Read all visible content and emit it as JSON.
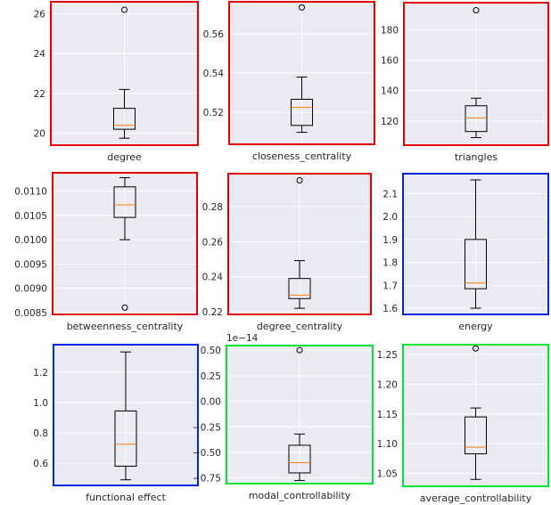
{
  "chart_data": [
    {
      "type": "box",
      "name": "degree",
      "xlabel": "degree",
      "border_color": "#e60000",
      "ylim": [
        19.4,
        26.6
      ],
      "yticks": [
        20,
        22,
        24,
        26
      ],
      "tick_labels": [
        "20",
        "22",
        "24",
        "26"
      ],
      "whisker_low": 19.75,
      "q1": 20.2,
      "median": 20.4,
      "q3": 21.25,
      "whisker_high": 22.2,
      "outliers": [
        26.2
      ]
    },
    {
      "type": "box",
      "name": "closeness_centrality",
      "xlabel": "closeness_centrality",
      "border_color": "#e60000",
      "ylim": [
        0.5037,
        0.5762
      ],
      "yticks": [
        0.52,
        0.54,
        0.56
      ],
      "tick_labels": [
        "0.52",
        "0.54",
        "0.56"
      ],
      "whisker_low": 0.5098,
      "q1": 0.5133,
      "median": 0.5225,
      "q3": 0.5266,
      "whisker_high": 0.5379,
      "outliers": [
        0.5733
      ]
    },
    {
      "type": "box",
      "name": "triangles",
      "xlabel": "triangles",
      "border_color": "#e60000",
      "ylim": [
        104,
        198
      ],
      "yticks": [
        120,
        140,
        160,
        180
      ],
      "tick_labels": [
        "120",
        "140",
        "160",
        "180"
      ],
      "whisker_low": 109,
      "q1": 113,
      "median": 122,
      "q3": 130,
      "whisker_high": 135,
      "outliers": [
        193
      ]
    },
    {
      "type": "box",
      "name": "betweenness_centrality",
      "xlabel": "betweenness_centrality",
      "border_color": "#e60000",
      "ylim": [
        0.00846,
        0.01138
      ],
      "yticks": [
        0.0085,
        0.009,
        0.0095,
        0.01,
        0.0105,
        0.011
      ],
      "tick_labels": [
        "0.0085",
        "0.0090",
        "0.0095",
        "0.0100",
        "0.0105",
        "0.0110"
      ],
      "whisker_low": 0.01,
      "q1": 0.01046,
      "median": 0.01072,
      "q3": 0.01109,
      "whisker_high": 0.01128,
      "outliers": [
        0.0086
      ]
    },
    {
      "type": "box",
      "name": "degree_centrality",
      "xlabel": "degree_centrality",
      "border_color": "#e60000",
      "ylim": [
        0.2185,
        0.2988
      ],
      "yticks": [
        0.22,
        0.24,
        0.26,
        0.28
      ],
      "tick_labels": [
        "0.22",
        "0.24",
        "0.26",
        "0.28"
      ],
      "whisker_low": 0.222,
      "q1": 0.2275,
      "median": 0.2295,
      "q3": 0.239,
      "whisker_high": 0.2492,
      "outliers": [
        0.295
      ]
    },
    {
      "type": "box",
      "name": "energy",
      "xlabel": "energy",
      "border_color": "#0026e6",
      "ylim": [
        1.573,
        2.187
      ],
      "yticks": [
        1.6,
        1.7,
        1.8,
        1.9,
        2.0,
        2.1
      ],
      "tick_labels": [
        "1.6",
        "1.7",
        "1.8",
        "1.9",
        "2.0",
        "2.1"
      ],
      "whisker_low": 1.6,
      "q1": 1.685,
      "median": 1.71,
      "q3": 1.9,
      "whisker_high": 2.16,
      "outliers": []
    },
    {
      "type": "box",
      "name": "functional_effect",
      "xlabel": "functional effect",
      "border_color": "#0026e6",
      "ylim": [
        0.453,
        1.383
      ],
      "yticks": [
        0.6,
        0.8,
        1.0,
        1.2
      ],
      "tick_labels": [
        "0.6",
        "0.8",
        "1.0",
        "1.2"
      ],
      "whisker_low": 0.49,
      "q1": 0.58,
      "median": 0.725,
      "q3": 0.945,
      "whisker_high": 1.335,
      "outliers": []
    },
    {
      "type": "box",
      "name": "modal_controllability",
      "xlabel": "modal_controllability",
      "border_color": "#00e633",
      "scale_label": "1e−14",
      "ylim": [
        -0.805,
        0.545
      ],
      "yticks": [
        -0.75,
        -0.5,
        -0.25,
        0.0,
        0.25,
        0.5
      ],
      "tick_labels": [
        "−0.75",
        "−0.50",
        "−0.25",
        "0.00",
        "0.25",
        "0.50"
      ],
      "whisker_low": -0.775,
      "q1": -0.7,
      "median": -0.6,
      "q3": -0.43,
      "whisker_high": -0.32,
      "outliers": [
        0.5
      ]
    },
    {
      "type": "box",
      "name": "average_controllability",
      "xlabel": "average_controllability",
      "border_color": "#00e633",
      "ylim": [
        1.0284,
        1.2664
      ],
      "yticks": [
        1.05,
        1.1,
        1.15,
        1.2,
        1.25
      ],
      "tick_labels": [
        "1.05",
        "1.10",
        "1.15",
        "1.20",
        "1.25"
      ],
      "whisker_low": 1.04,
      "q1": 1.083,
      "median": 1.094,
      "q3": 1.145,
      "whisker_high": 1.16,
      "outliers": [
        1.26
      ]
    }
  ]
}
